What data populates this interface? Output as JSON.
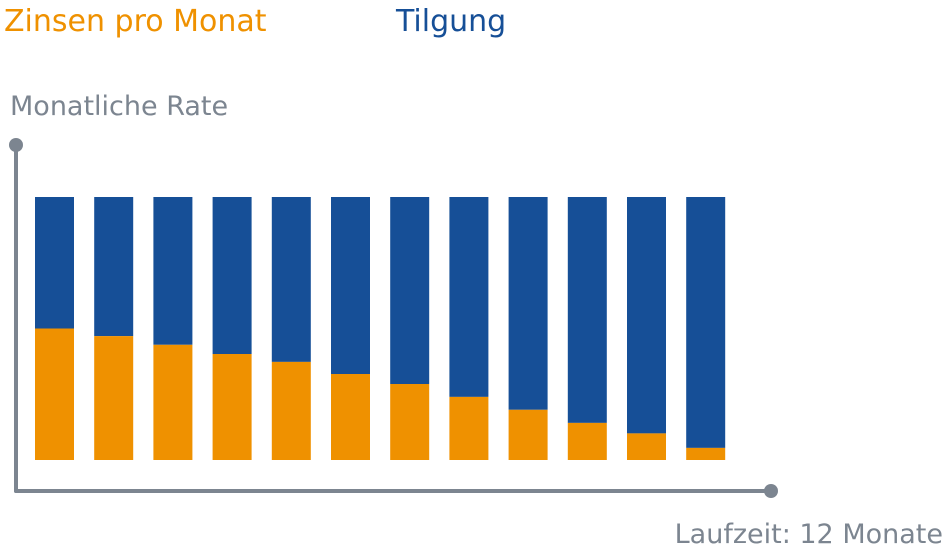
{
  "legend": {
    "interest_label": "Zinsen pro Monat",
    "repayment_label": "Tilgung"
  },
  "axes": {
    "y_label": "Monatliche Rate",
    "x_label": "Laufzeit: 12 Monate"
  },
  "colors": {
    "interest": "#ef9100",
    "repayment": "#164f97",
    "axis": "#7c8590"
  },
  "chart_data": {
    "type": "bar",
    "stacked": true,
    "categories": [
      "1",
      "2",
      "3",
      "4",
      "5",
      "6",
      "7",
      "8",
      "9",
      "10",
      "11",
      "12"
    ],
    "category_labels_shown": false,
    "series": [
      {
        "name": "Zinsen pro Monat",
        "values": [
          50.0,
          47.1,
          43.8,
          40.3,
          37.3,
          32.7,
          28.9,
          24.0,
          19.1,
          14.1,
          10.1,
          4.6
        ]
      },
      {
        "name": "Tilgung",
        "values": [
          50.0,
          52.9,
          56.2,
          59.7,
          62.7,
          67.3,
          71.1,
          76.0,
          80.9,
          85.9,
          89.9,
          95.4
        ]
      }
    ],
    "total_per_bar": 100,
    "xlabel": "Laufzeit: 12 Monate",
    "ylabel": "Monatliche Rate",
    "ylim": [
      0,
      100
    ],
    "grid": false,
    "legend_position": "top-left",
    "y_ticks_shown": false
  }
}
